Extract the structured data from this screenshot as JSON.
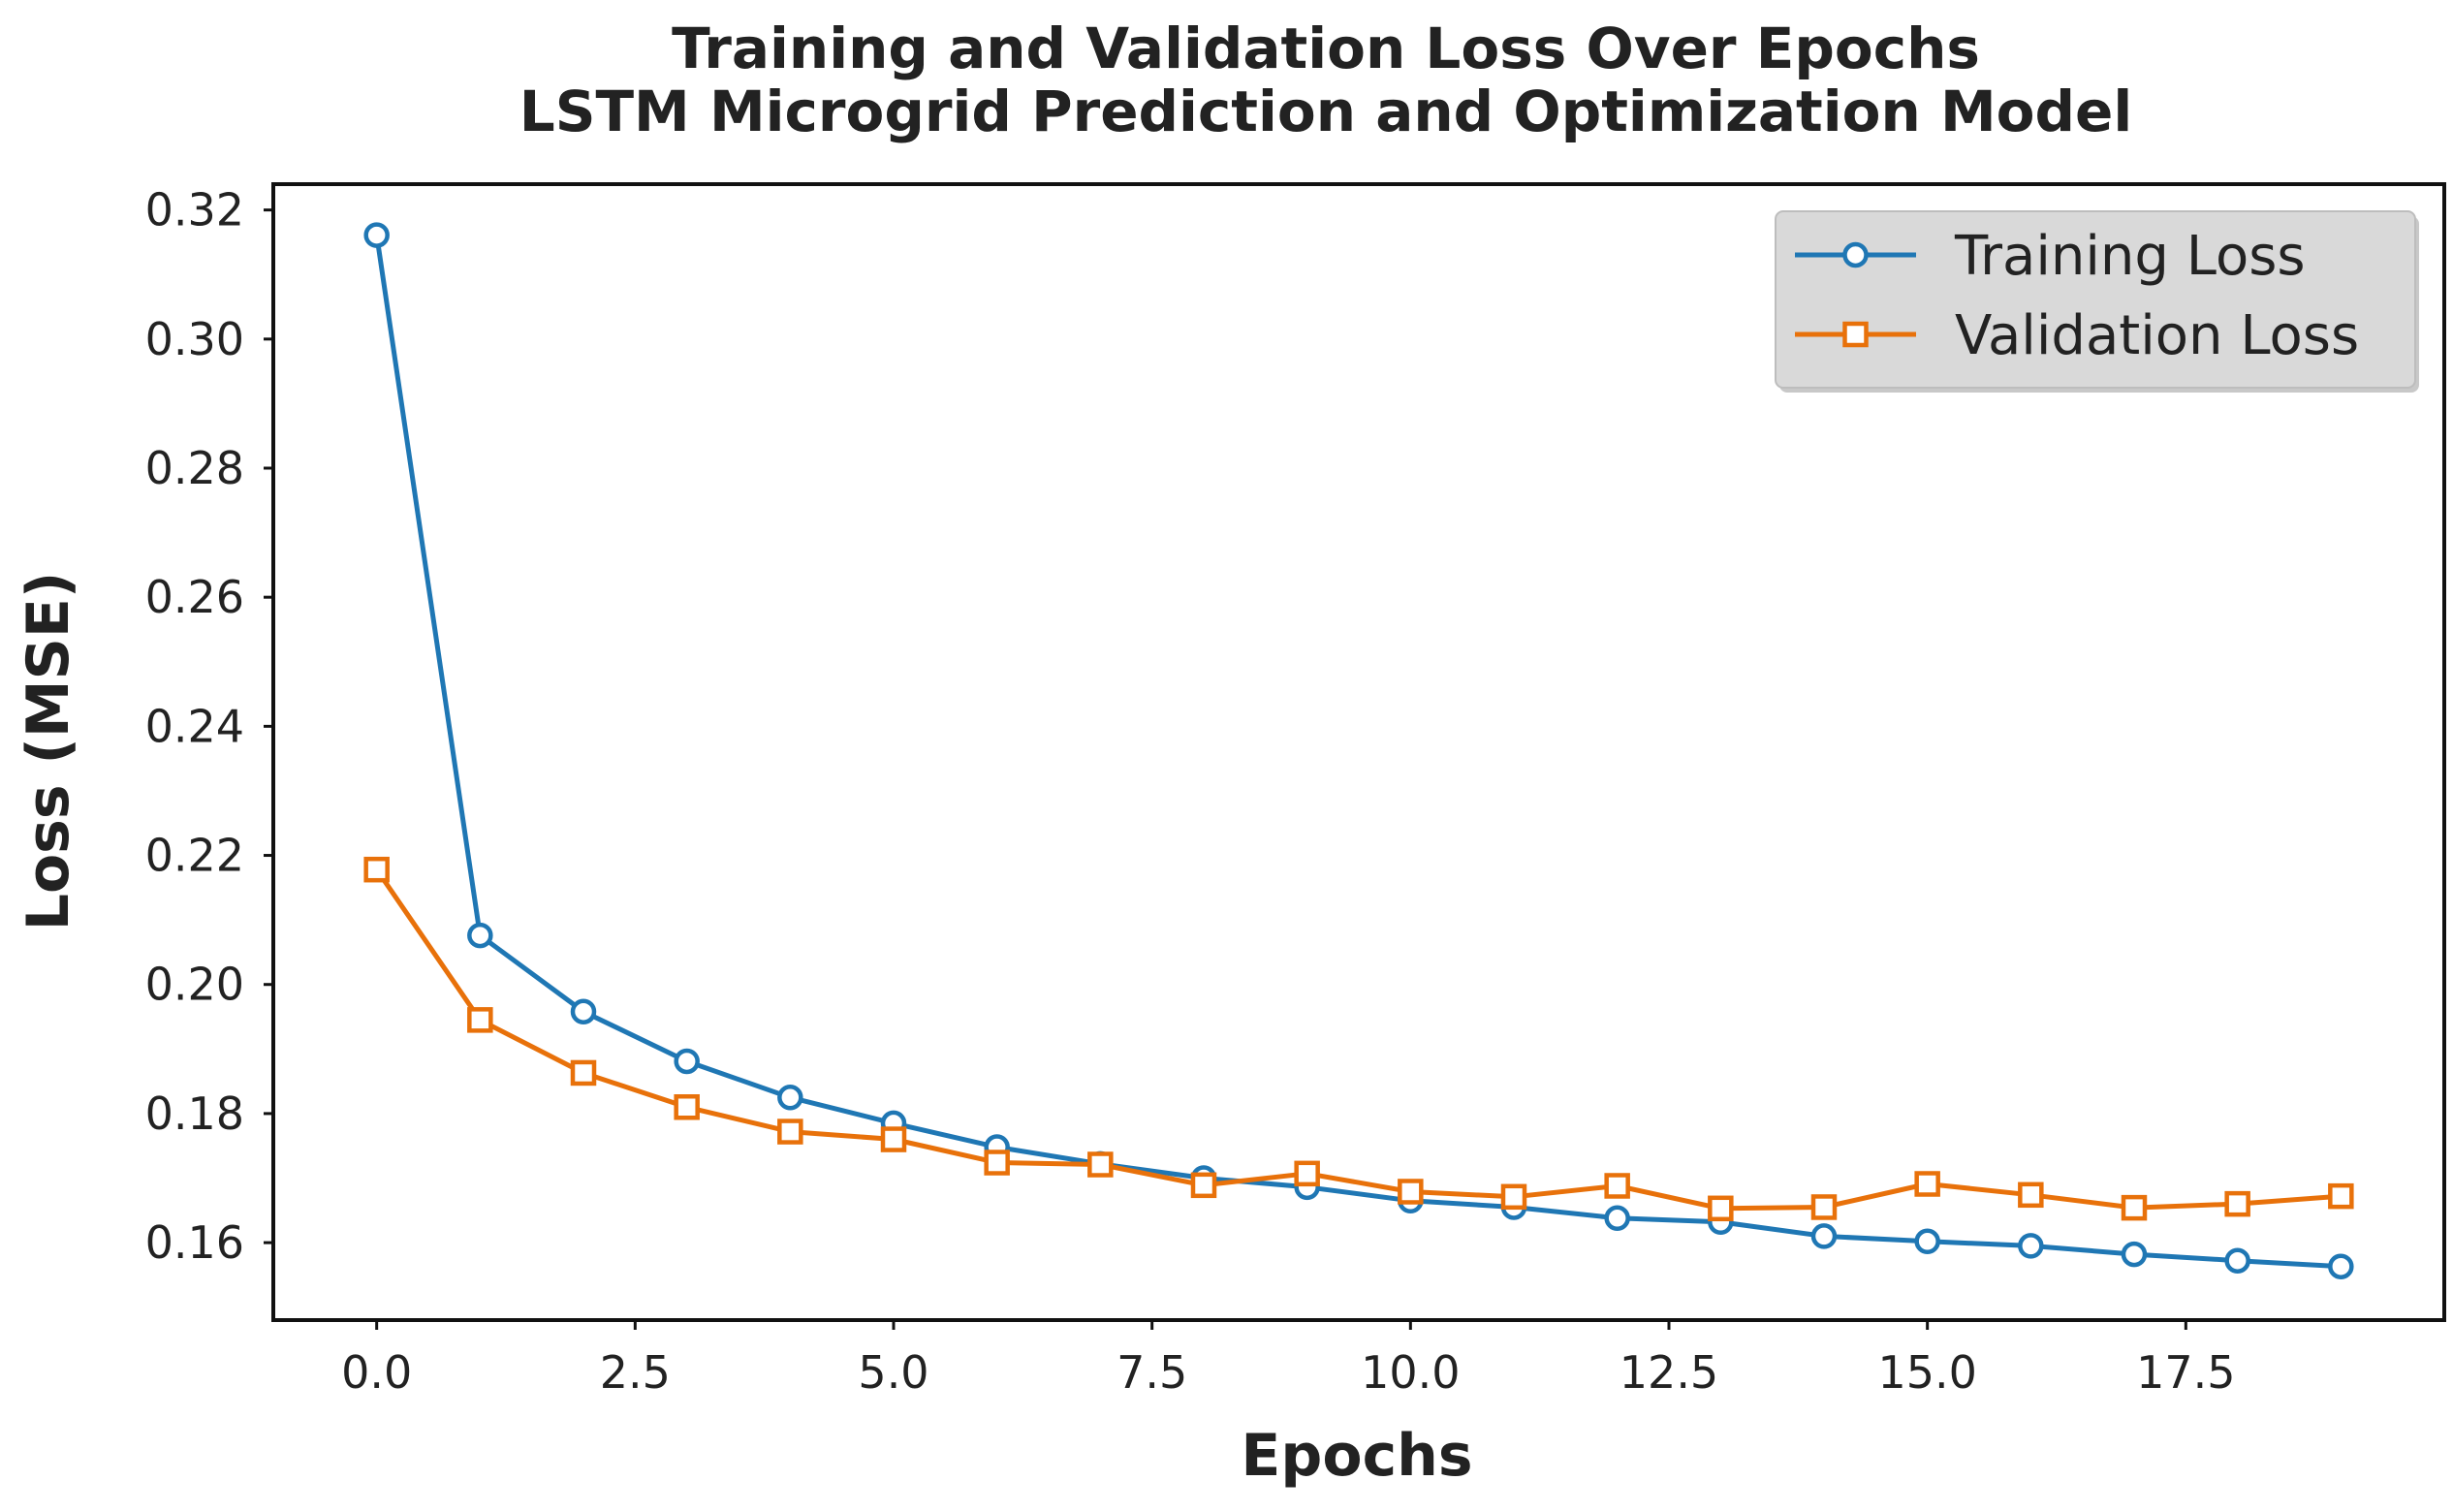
{
  "chart_data": {
    "type": "line",
    "title": "Training and Validation Loss Over Epochs",
    "subtitle": "LSTM Microgrid Prediction and Optimization Model",
    "xlabel": "Epochs",
    "ylabel": "Loss (MSE)",
    "xlim": [
      -1.0,
      20.0
    ],
    "ylim": [
      0.148,
      0.324
    ],
    "x_ticks": [
      0.0,
      2.5,
      5.0,
      7.5,
      10.0,
      12.5,
      15.0,
      17.5
    ],
    "x_tick_labels": [
      "0.0",
      "2.5",
      "5.0",
      "7.5",
      "10.0",
      "12.5",
      "15.0",
      "17.5"
    ],
    "y_ticks": [
      0.16,
      0.18,
      0.2,
      0.22,
      0.24,
      0.26,
      0.28,
      0.3,
      0.32
    ],
    "y_tick_labels": [
      "0.16",
      "0.18",
      "0.20",
      "0.22",
      "0.24",
      "0.26",
      "0.28",
      "0.30",
      "0.32"
    ],
    "grid": false,
    "legend_position": "top-right",
    "x": [
      0,
      1,
      2,
      3,
      4,
      5,
      6,
      7,
      8,
      9,
      10,
      11,
      12,
      13,
      14,
      15,
      16,
      17,
      18,
      19
    ],
    "series": [
      {
        "name": "Training Loss",
        "color": "#1f77b4",
        "marker": "circle",
        "values": [
          0.3161,
          0.2076,
          0.1958,
          0.1881,
          0.1825,
          0.1785,
          0.1748,
          0.1722,
          0.17,
          0.1686,
          0.1665,
          0.1655,
          0.1638,
          0.1632,
          0.161,
          0.1602,
          0.1595,
          0.1582,
          0.1572,
          0.1563
        ]
      },
      {
        "name": "Validation Loss",
        "color": "#e8710a",
        "marker": "square",
        "values": [
          0.2178,
          0.1945,
          0.1863,
          0.181,
          0.1772,
          0.176,
          0.1724,
          0.1721,
          0.1689,
          0.1707,
          0.1679,
          0.1671,
          0.1688,
          0.1653,
          0.1655,
          0.1691,
          0.1674,
          0.1654,
          0.166,
          0.1672
        ]
      }
    ]
  }
}
